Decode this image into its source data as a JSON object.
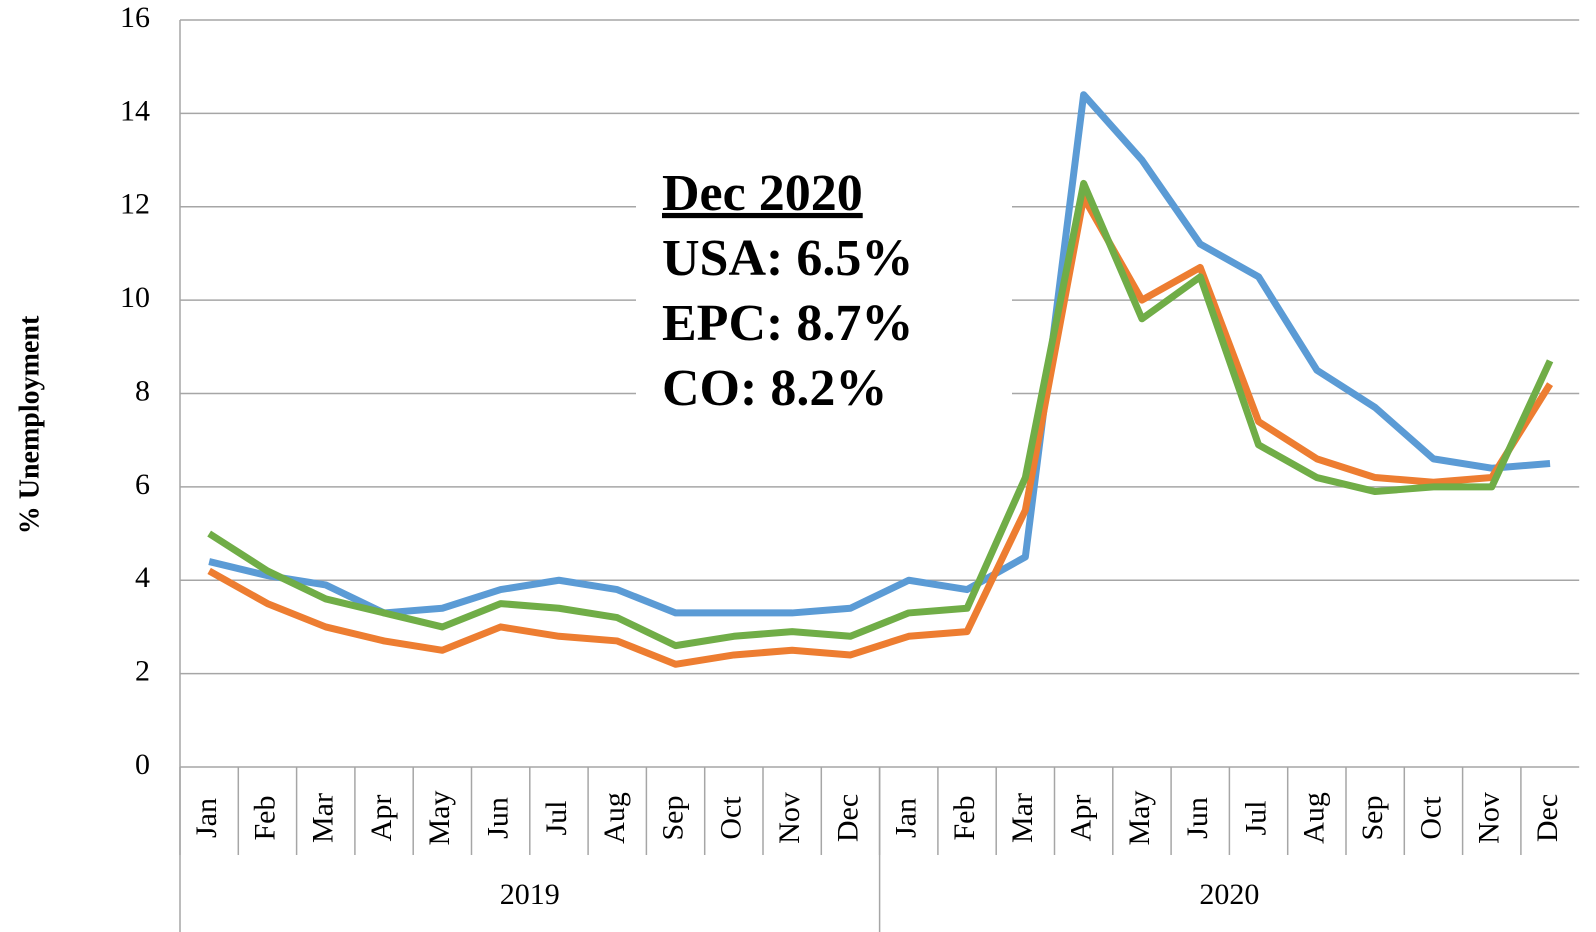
{
  "chart_data": {
    "type": "line",
    "y_label": "% Unemployment",
    "categories": [
      "Jan",
      "Feb",
      "Mar",
      "Apr",
      "May",
      "Jun",
      "Jul",
      "Aug",
      "Sep",
      "Oct",
      "Nov",
      "Dec",
      "Jan",
      "Feb",
      "Mar",
      "Apr",
      "May",
      "Jun",
      "Jul",
      "Aug",
      "Sep",
      "Oct",
      "Nov",
      "Dec"
    ],
    "category_groups": [
      "2019",
      "2020"
    ],
    "series": [
      {
        "name": "USA",
        "color": "#5b9bd5",
        "values": [
          4.4,
          4.1,
          3.9,
          3.3,
          3.4,
          3.8,
          4.0,
          3.8,
          3.3,
          3.3,
          3.3,
          3.4,
          4.0,
          3.8,
          4.5,
          14.4,
          13.0,
          11.2,
          10.5,
          8.5,
          7.7,
          6.6,
          6.4,
          6.5
        ]
      },
      {
        "name": "CO",
        "color": "#ed7d31",
        "values": [
          4.2,
          3.5,
          3.0,
          2.7,
          2.5,
          3.0,
          2.8,
          2.7,
          2.2,
          2.4,
          2.5,
          2.4,
          2.8,
          2.9,
          5.5,
          12.2,
          10.0,
          10.7,
          7.4,
          6.6,
          6.2,
          6.1,
          6.2,
          8.2
        ]
      },
      {
        "name": "EPC",
        "color": "#70ad47",
        "values": [
          5.0,
          4.2,
          3.6,
          3.3,
          3.0,
          3.5,
          3.4,
          3.2,
          2.6,
          2.8,
          2.9,
          2.8,
          3.3,
          3.4,
          6.2,
          12.5,
          9.6,
          10.5,
          6.9,
          6.2,
          5.9,
          6.0,
          6.0,
          8.7
        ]
      }
    ],
    "annotations": [
      {
        "text": "Dec 2020",
        "color": "#000000",
        "underline": true
      },
      {
        "text": "USA: 6.5%",
        "color": "#5b9bd5"
      },
      {
        "text": "EPC: 8.7%",
        "color": "#70ad47"
      },
      {
        "text": "CO: 8.2%",
        "color": "#ed7d31"
      }
    ],
    "ylim": [
      0,
      16
    ],
    "yticks": [
      0,
      2,
      4,
      6,
      8,
      10,
      12,
      14,
      16
    ],
    "grid": true
  }
}
